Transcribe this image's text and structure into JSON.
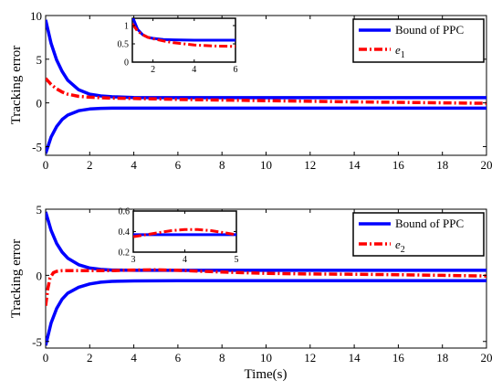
{
  "figure": {
    "xlabel": "Time(s)"
  },
  "colors": {
    "bound": "#0000ff",
    "error": "#ff0000",
    "axes": "#000000"
  },
  "chart_data": [
    {
      "type": "line",
      "panel": "top",
      "ylabel": "Tracking error",
      "xlim": [
        0,
        20
      ],
      "ylim": [
        -6,
        10
      ],
      "xticks": [
        "0",
        "2",
        "4",
        "6",
        "8",
        "10",
        "12",
        "14",
        "16",
        "18",
        "20"
      ],
      "yticks": [
        "-5",
        "0",
        "5",
        "10"
      ],
      "legend": {
        "position": "top-right",
        "entries": [
          {
            "label": "Bound of PPC",
            "style": "solid"
          },
          {
            "label": "e",
            "sub": "1",
            "style": "dash-dot"
          }
        ]
      },
      "series": [
        {
          "name": "Bound of PPC",
          "x": [
            0,
            0.25,
            0.5,
            0.75,
            1,
            1.5,
            2,
            2.5,
            3,
            4,
            6,
            10,
            20
          ],
          "y": [
            9.5,
            6.8,
            4.9,
            3.6,
            2.6,
            1.5,
            1.0,
            0.8,
            0.7,
            0.62,
            0.6,
            0.6,
            0.6
          ]
        },
        {
          "name": "Bound of PPC (lower)",
          "x": [
            0,
            0.25,
            0.5,
            0.75,
            1,
            1.5,
            2,
            2.5,
            3,
            4,
            6,
            10,
            20
          ],
          "y": [
            -5.8,
            -3.9,
            -2.7,
            -1.9,
            -1.4,
            -0.9,
            -0.7,
            -0.62,
            -0.6,
            -0.6,
            -0.6,
            -0.6,
            -0.6
          ]
        },
        {
          "name": "e1",
          "x": [
            0,
            0.25,
            0.5,
            0.75,
            1,
            1.5,
            2,
            3,
            4,
            5,
            6,
            8,
            10,
            14,
            20
          ],
          "y": [
            2.8,
            2.1,
            1.6,
            1.25,
            1.0,
            0.75,
            0.65,
            0.55,
            0.5,
            0.45,
            0.4,
            0.33,
            0.25,
            0.12,
            -0.05
          ]
        }
      ],
      "inset": {
        "xlim": [
          1,
          6
        ],
        "ylim": [
          0,
          1.2
        ],
        "xticks": [
          "2",
          "4",
          "6"
        ],
        "yticks": [
          "0",
          "0.5",
          "1"
        ],
        "series": [
          {
            "name": "Bound of PPC",
            "x": [
              1,
              1.25,
              1.5,
              1.75,
              2,
              2.5,
              3,
              4,
              5,
              6
            ],
            "y": [
              1.25,
              0.9,
              0.75,
              0.68,
              0.65,
              0.62,
              0.61,
              0.6,
              0.6,
              0.6
            ]
          },
          {
            "name": "e1",
            "x": [
              1,
              1.25,
              1.5,
              1.75,
              2,
              2.5,
              3,
              4,
              5,
              6
            ],
            "y": [
              1.05,
              0.85,
              0.75,
              0.68,
              0.64,
              0.58,
              0.53,
              0.47,
              0.44,
              0.43
            ]
          }
        ]
      }
    },
    {
      "type": "line",
      "panel": "bottom",
      "ylabel": "Tracking error",
      "xlim": [
        0,
        20
      ],
      "ylim": [
        -5.5,
        5
      ],
      "xticks": [
        "0",
        "2",
        "4",
        "6",
        "8",
        "10",
        "12",
        "14",
        "16",
        "18",
        "20"
      ],
      "yticks": [
        "-5",
        "0",
        "5"
      ],
      "legend": {
        "position": "top-right",
        "entries": [
          {
            "label": "Bound of PPC",
            "style": "solid"
          },
          {
            "label": "e",
            "sub": "2",
            "style": "dash-dot"
          }
        ]
      },
      "series": [
        {
          "name": "Bound of PPC",
          "x": [
            0,
            0.25,
            0.5,
            0.75,
            1,
            1.5,
            2,
            2.5,
            3,
            4,
            6,
            10,
            20
          ],
          "y": [
            4.8,
            3.4,
            2.4,
            1.75,
            1.3,
            0.8,
            0.55,
            0.45,
            0.4,
            0.38,
            0.38,
            0.38,
            0.38
          ]
        },
        {
          "name": "Bound of PPC (lower)",
          "x": [
            0,
            0.25,
            0.5,
            0.75,
            1,
            1.5,
            2,
            2.5,
            3,
            4,
            6,
            10,
            20
          ],
          "y": [
            -5.3,
            -3.6,
            -2.5,
            -1.8,
            -1.35,
            -0.9,
            -0.65,
            -0.52,
            -0.46,
            -0.42,
            -0.4,
            -0.4,
            -0.4
          ]
        },
        {
          "name": "e2",
          "x": [
            0,
            0.1,
            0.2,
            0.35,
            0.5,
            0.75,
            1,
            1.5,
            2,
            3,
            4,
            5,
            6,
            8,
            10,
            12,
            14,
            16,
            18,
            20
          ],
          "y": [
            -2.3,
            -1.0,
            -0.2,
            0.2,
            0.3,
            0.35,
            0.36,
            0.36,
            0.35,
            0.36,
            0.4,
            0.42,
            0.38,
            0.25,
            0.15,
            0.1,
            0.08,
            0.05,
            0.0,
            -0.05
          ]
        }
      ],
      "inset": {
        "xlim": [
          3,
          5
        ],
        "ylim": [
          0.2,
          0.6
        ],
        "xticks": [
          "3",
          "4",
          "5"
        ],
        "yticks": [
          "0.2",
          "0.4",
          "0.6"
        ],
        "series": [
          {
            "name": "Bound of PPC",
            "x": [
              3,
              3.5,
              4,
              4.5,
              5
            ],
            "y": [
              0.37,
              0.37,
              0.37,
              0.37,
              0.37
            ]
          },
          {
            "name": "e2",
            "x": [
              3,
              3.25,
              3.5,
              3.75,
              4,
              4.25,
              4.5,
              4.75,
              5
            ],
            "y": [
              0.35,
              0.37,
              0.39,
              0.41,
              0.42,
              0.42,
              0.41,
              0.39,
              0.37
            ]
          }
        ]
      }
    }
  ]
}
